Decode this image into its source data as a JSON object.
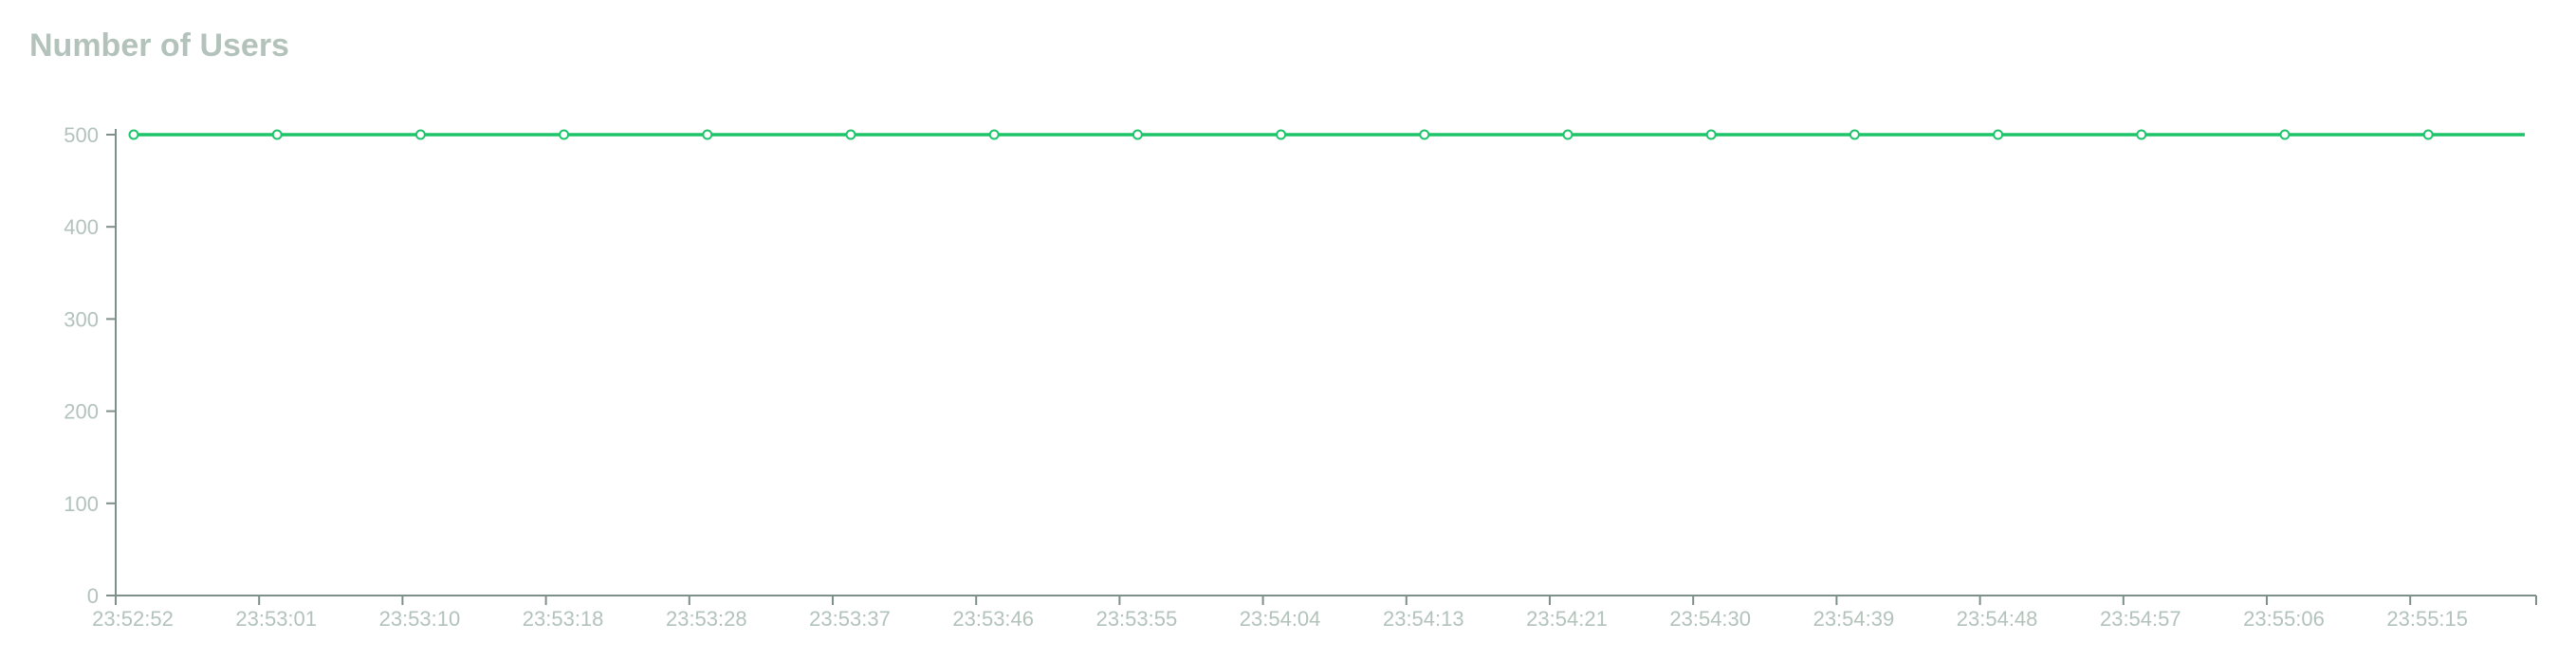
{
  "chart_data": {
    "type": "line",
    "title": "Number of Users",
    "xlabel": "",
    "ylabel": "",
    "x": [
      "23:52:52",
      "23:53:01",
      "23:53:10",
      "23:53:18",
      "23:53:28",
      "23:53:37",
      "23:53:46",
      "23:53:55",
      "23:54:04",
      "23:54:13",
      "23:54:21",
      "23:54:30",
      "23:54:39",
      "23:54:48",
      "23:54:57",
      "23:55:06",
      "23:55:15"
    ],
    "series": [
      {
        "values": [
          500,
          500,
          500,
          500,
          500,
          500,
          500,
          500,
          500,
          500,
          500,
          500,
          500,
          500,
          500,
          500,
          500
        ],
        "color": "#1ec46a"
      }
    ],
    "ylim": [
      0,
      500
    ],
    "yticks": [
      0,
      100,
      200,
      300,
      400,
      500
    ],
    "grid": false,
    "legend": "none",
    "axis_color": "#7f8f89",
    "label_color": "#b3c3bc"
  }
}
